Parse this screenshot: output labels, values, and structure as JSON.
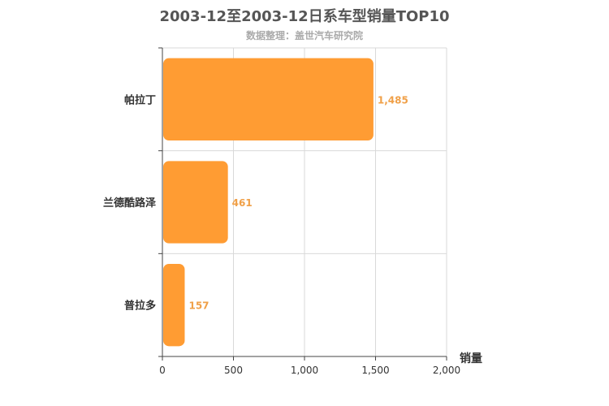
{
  "colors": {
    "bar": "#ff9c33",
    "value_label": "#f0a048",
    "grid": "#d9d9d9",
    "axis": "#444444",
    "text": "#333333"
  },
  "chart_data": {
    "type": "bar",
    "orientation": "horizontal",
    "title": "2003-12至2003-12日系车型销量TOP10",
    "subtitle": "数据整理：盖世汽车研究院",
    "categories": [
      "帕拉丁",
      "兰德酷路泽",
      "普拉多"
    ],
    "values": [
      1485,
      461,
      157
    ],
    "value_labels": [
      "1,485",
      "461",
      "157"
    ],
    "xlabel": "销量",
    "ylabel": "",
    "xlim": [
      0,
      2000
    ],
    "x_ticks": [
      0,
      500,
      1000,
      1500,
      2000
    ],
    "x_tick_labels": [
      "0",
      "500",
      "1,000",
      "1,500",
      "2,000"
    ],
    "grid": true,
    "legend": "none"
  }
}
